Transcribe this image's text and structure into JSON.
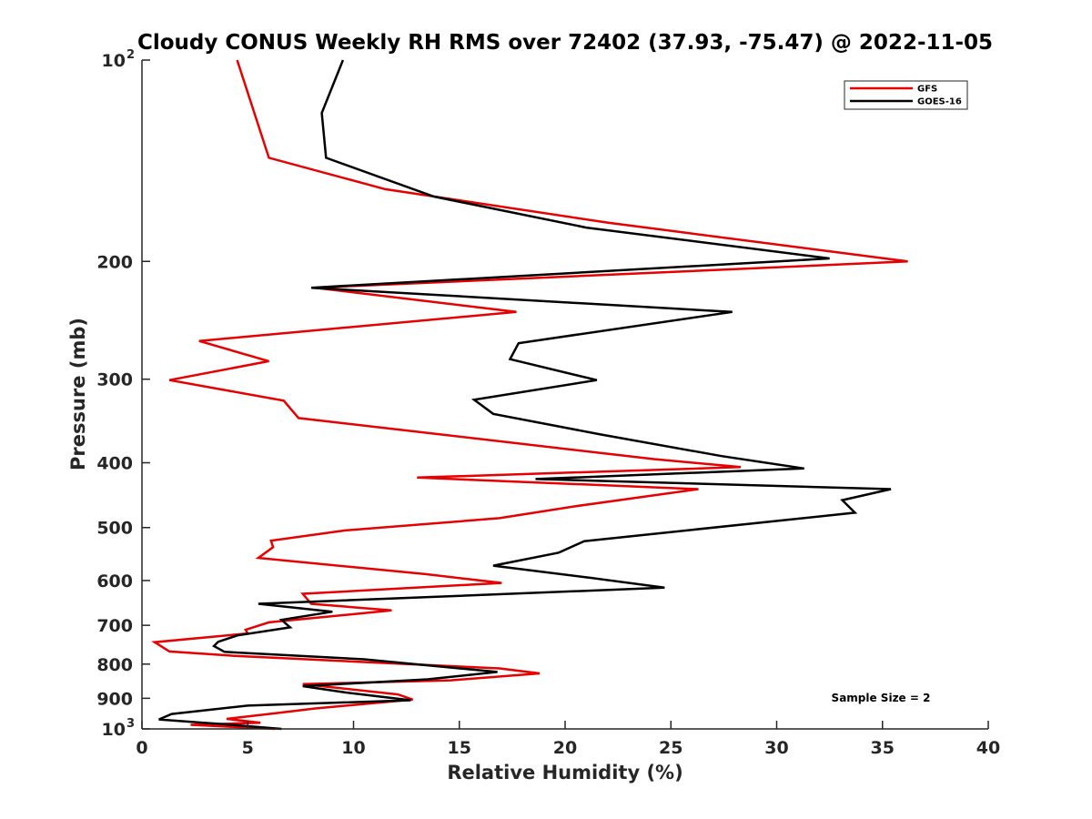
{
  "chart_data": {
    "type": "line",
    "title": "Cloudy CONUS Weekly RH RMS over 72402 (37.93, -75.47) @ 2022-11-05",
    "xlabel": "Relative Humidity (%)",
    "ylabel": "Pressure (mb)",
    "xlim": [
      0,
      40
    ],
    "ylim": [
      100,
      1000
    ],
    "yscale": "log",
    "y_reversed": true,
    "grid": false,
    "legend_position": "top-right",
    "x_ticks": [
      {
        "value": 0,
        "label": "0"
      },
      {
        "value": 5,
        "label": "5"
      },
      {
        "value": 10,
        "label": "10"
      },
      {
        "value": 15,
        "label": "15"
      },
      {
        "value": 20,
        "label": "20"
      },
      {
        "value": 25,
        "label": "25"
      },
      {
        "value": 30,
        "label": "30"
      },
      {
        "value": 35,
        "label": "35"
      },
      {
        "value": 40,
        "label": "40"
      }
    ],
    "y_ticks": [
      {
        "value": 100,
        "label": "10",
        "exp": "2"
      },
      {
        "value": 200,
        "label": "200"
      },
      {
        "value": 300,
        "label": "300"
      },
      {
        "value": 400,
        "label": "400"
      },
      {
        "value": 500,
        "label": "500"
      },
      {
        "value": 600,
        "label": "600"
      },
      {
        "value": 700,
        "label": "700"
      },
      {
        "value": 800,
        "label": "800"
      },
      {
        "value": 900,
        "label": "900"
      },
      {
        "value": 1000,
        "label": "10",
        "exp": "3"
      }
    ],
    "annotation": "Sample Size = 2",
    "series": [
      {
        "name": "GFS",
        "color": "#e60000",
        "points": [
          [
            4.5,
            100
          ],
          [
            6.0,
            140
          ],
          [
            11.5,
            156
          ],
          [
            22.0,
            175
          ],
          [
            36.2,
            200
          ],
          [
            8.2,
            219
          ],
          [
            17.7,
            238
          ],
          [
            2.7,
            263
          ],
          [
            6.0,
            282
          ],
          [
            1.3,
            301
          ],
          [
            6.7,
            323
          ],
          [
            7.4,
            343
          ],
          [
            24.2,
            395
          ],
          [
            28.3,
            406
          ],
          [
            13.0,
            421
          ],
          [
            26.3,
            438
          ],
          [
            20.4,
            465
          ],
          [
            16.9,
            484
          ],
          [
            9.6,
            505
          ],
          [
            6.1,
            523
          ],
          [
            6.2,
            535
          ],
          [
            5.5,
            555
          ],
          [
            13.4,
            587
          ],
          [
            17.0,
            605
          ],
          [
            7.6,
            628
          ],
          [
            8.0,
            650
          ],
          [
            11.8,
            665
          ],
          [
            6.0,
            693
          ],
          [
            4.9,
            711
          ],
          [
            5.0,
            720
          ],
          [
            0.6,
            742
          ],
          [
            1.3,
            766
          ],
          [
            4.5,
            778
          ],
          [
            16.9,
            812
          ],
          [
            18.8,
            826
          ],
          [
            14.6,
            846
          ],
          [
            7.6,
            857
          ],
          [
            12.1,
            888
          ],
          [
            12.8,
            904
          ],
          [
            8.2,
            932
          ],
          [
            6.0,
            950
          ],
          [
            4.0,
            966
          ],
          [
            5.6,
            979
          ],
          [
            2.3,
            986
          ],
          [
            6.3,
            1000
          ]
        ]
      },
      {
        "name": "GOES-16",
        "color": "#000000",
        "points": [
          [
            9.5,
            100
          ],
          [
            8.5,
            120
          ],
          [
            8.7,
            140
          ],
          [
            13.8,
            160
          ],
          [
            21.0,
            178
          ],
          [
            32.5,
            198
          ],
          [
            8.0,
            219
          ],
          [
            27.9,
            238
          ],
          [
            17.8,
            265
          ],
          [
            17.4,
            280
          ],
          [
            21.5,
            301
          ],
          [
            15.7,
            322
          ],
          [
            16.6,
            338
          ],
          [
            21.7,
            363
          ],
          [
            27.4,
            391
          ],
          [
            31.3,
            408
          ],
          [
            18.6,
            423
          ],
          [
            35.4,
            438
          ],
          [
            33.1,
            455
          ],
          [
            33.7,
            475
          ],
          [
            20.9,
            524
          ],
          [
            19.7,
            545
          ],
          [
            16.6,
            570
          ],
          [
            21.3,
            595
          ],
          [
            24.7,
            615
          ],
          [
            5.5,
            650
          ],
          [
            9.0,
            668
          ],
          [
            6.6,
            687
          ],
          [
            7.0,
            705
          ],
          [
            4.5,
            725
          ],
          [
            3.6,
            741
          ],
          [
            3.4,
            752
          ],
          [
            3.9,
            767
          ],
          [
            10.5,
            787
          ],
          [
            16.8,
            822
          ],
          [
            13.5,
            843
          ],
          [
            7.6,
            863
          ],
          [
            9.6,
            882
          ],
          [
            12.7,
            906
          ],
          [
            5.0,
            923
          ],
          [
            1.4,
            950
          ],
          [
            0.8,
            968
          ],
          [
            3.5,
            982
          ],
          [
            6.6,
            1000
          ]
        ]
      }
    ]
  }
}
